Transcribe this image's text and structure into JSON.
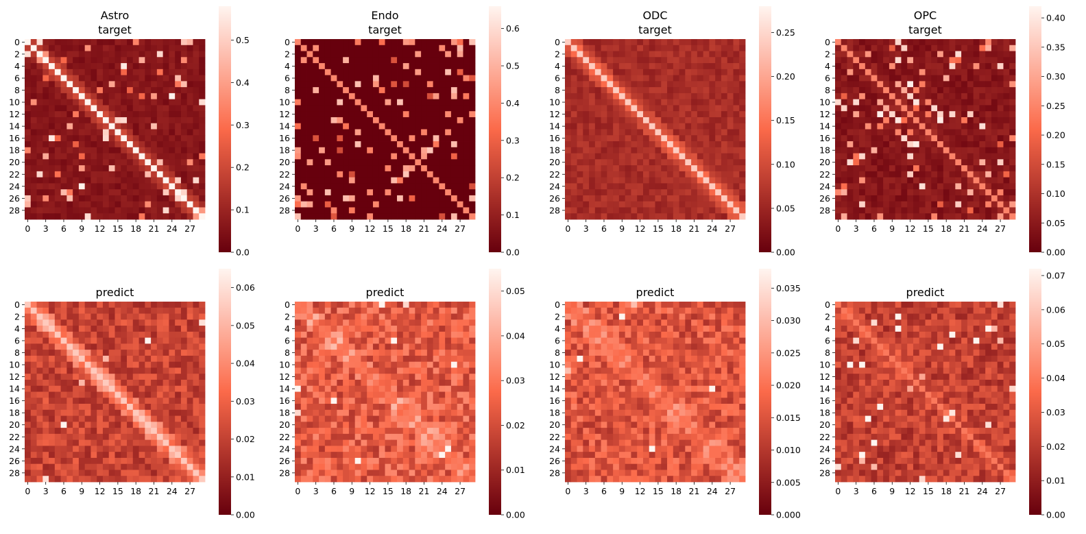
{
  "colormap": {
    "name": "Reds_r",
    "low": "#67000d",
    "mid": "#fb6a4a",
    "high": "#fff5f0"
  },
  "chart_data": [
    {
      "type": "heatmap",
      "title": "Astro\ntarget",
      "rows": 30,
      "cols": 30,
      "ytick_labels": [
        "0",
        "2",
        "4",
        "6",
        "8",
        "10",
        "12",
        "14",
        "16",
        "18",
        "20",
        "22",
        "24",
        "26",
        "28"
      ],
      "xtick_labels": [
        "0",
        "3",
        "6",
        "9",
        "12",
        "15",
        "18",
        "21",
        "24",
        "27"
      ],
      "colorbar": {
        "min": 0.0,
        "max": 0.58,
        "ticks": [
          "0.0",
          "0.1",
          "0.2",
          "0.3",
          "0.4",
          "0.5"
        ]
      },
      "pattern": {
        "diagonal": 0.58,
        "band": 0.12,
        "background": 0.03,
        "noise": 0.06,
        "speckle": 0.08,
        "seed": 11
      }
    },
    {
      "type": "heatmap",
      "title": "Endo\ntarget",
      "rows": 30,
      "cols": 30,
      "ytick_labels": [
        "0",
        "2",
        "4",
        "6",
        "8",
        "10",
        "12",
        "14",
        "16",
        "18",
        "20",
        "22",
        "24",
        "26",
        "28"
      ],
      "xtick_labels": [
        "0",
        "3",
        "6",
        "9",
        "12",
        "15",
        "18",
        "21",
        "24",
        "27"
      ],
      "colorbar": {
        "min": 0.0,
        "max": 0.66,
        "ticks": [
          "0.0",
          "0.1",
          "0.2",
          "0.3",
          "0.4",
          "0.5",
          "0.6"
        ]
      },
      "pattern": {
        "diagonal": 0.4,
        "band": 0.0,
        "background": 0.0,
        "noise": 0.0,
        "speckle": 0.1,
        "seed": 23
      }
    },
    {
      "type": "heatmap",
      "title": "ODC\ntarget",
      "rows": 30,
      "cols": 30,
      "ytick_labels": [
        "0",
        "2",
        "4",
        "6",
        "8",
        "10",
        "12",
        "14",
        "16",
        "18",
        "20",
        "22",
        "24",
        "26",
        "28"
      ],
      "xtick_labels": [
        "0",
        "3",
        "6",
        "9",
        "12",
        "15",
        "18",
        "21",
        "24",
        "27"
      ],
      "colorbar": {
        "min": 0.0,
        "max": 0.28,
        "ticks": [
          "0.00",
          "0.05",
          "0.10",
          "0.15",
          "0.20",
          "0.25"
        ]
      },
      "pattern": {
        "diagonal": 0.24,
        "band": 0.06,
        "background": 0.04,
        "noise": 0.04,
        "speckle": 0.0,
        "seed": 37
      }
    },
    {
      "type": "heatmap",
      "title": "OPC\ntarget",
      "rows": 30,
      "cols": 30,
      "ytick_labels": [
        "0",
        "2",
        "4",
        "6",
        "8",
        "10",
        "12",
        "14",
        "16",
        "18",
        "20",
        "22",
        "24",
        "26",
        "28"
      ],
      "xtick_labels": [
        "0",
        "3",
        "6",
        "9",
        "12",
        "15",
        "18",
        "21",
        "24",
        "27"
      ],
      "colorbar": {
        "min": 0.0,
        "max": 0.42,
        "ticks": [
          "0.00",
          "0.05",
          "0.10",
          "0.15",
          "0.20",
          "0.25",
          "0.30",
          "0.35",
          "0.40"
        ]
      },
      "pattern": {
        "diagonal": 0.25,
        "band": 0.02,
        "background": 0.02,
        "noise": 0.05,
        "speckle": 0.14,
        "seed": 41
      }
    },
    {
      "type": "heatmap",
      "title": "predict",
      "rows": 30,
      "cols": 30,
      "ytick_labels": [
        "0",
        "2",
        "4",
        "6",
        "8",
        "10",
        "12",
        "14",
        "16",
        "18",
        "20",
        "22",
        "24",
        "26",
        "28"
      ],
      "xtick_labels": [
        "0",
        "3",
        "6",
        "9",
        "12",
        "15",
        "18",
        "21",
        "24",
        "27"
      ],
      "colorbar": {
        "min": 0.0,
        "max": 0.065,
        "ticks": [
          "0.00",
          "0.01",
          "0.02",
          "0.03",
          "0.04",
          "0.05",
          "0.06"
        ]
      },
      "pattern": {
        "diagonal": 0.055,
        "band": 0.02,
        "background": 0.012,
        "noise": 0.018,
        "speckle": 0.015,
        "seed": 53
      }
    },
    {
      "type": "heatmap",
      "title": "predict",
      "rows": 30,
      "cols": 30,
      "ytick_labels": [
        "0",
        "2",
        "4",
        "6",
        "8",
        "10",
        "12",
        "14",
        "16",
        "18",
        "20",
        "22",
        "24",
        "26",
        "28"
      ],
      "xtick_labels": [
        "0",
        "3",
        "6",
        "9",
        "12",
        "15",
        "18",
        "21",
        "24",
        "27"
      ],
      "colorbar": {
        "min": 0.0,
        "max": 0.055,
        "ticks": [
          "0.00",
          "0.01",
          "0.02",
          "0.03",
          "0.04",
          "0.05"
        ]
      },
      "pattern": {
        "diagonal": 0.03,
        "band": 0.01,
        "background": 0.014,
        "noise": 0.02,
        "speckle": 0.012,
        "seed": 67
      }
    },
    {
      "type": "heatmap",
      "title": "predict",
      "rows": 30,
      "cols": 30,
      "ytick_labels": [
        "0",
        "2",
        "4",
        "6",
        "8",
        "10",
        "12",
        "14",
        "16",
        "18",
        "20",
        "22",
        "24",
        "26",
        "28"
      ],
      "xtick_labels": [
        "0",
        "3",
        "6",
        "9",
        "12",
        "15",
        "18",
        "21",
        "24",
        "27"
      ],
      "colorbar": {
        "min": 0.0,
        "max": 0.038,
        "ticks": [
          "0.000",
          "0.005",
          "0.010",
          "0.015",
          "0.020",
          "0.025",
          "0.030",
          "0.035"
        ]
      },
      "pattern": {
        "diagonal": 0.02,
        "band": 0.006,
        "background": 0.009,
        "noise": 0.013,
        "speckle": 0.006,
        "seed": 79
      }
    },
    {
      "type": "heatmap",
      "title": "predict",
      "rows": 30,
      "cols": 30,
      "ytick_labels": [
        "0",
        "2",
        "4",
        "6",
        "8",
        "10",
        "12",
        "14",
        "16",
        "18",
        "20",
        "22",
        "24",
        "26",
        "28"
      ],
      "xtick_labels": [
        "0",
        "3",
        "6",
        "9",
        "12",
        "15",
        "18",
        "21",
        "24",
        "27"
      ],
      "colorbar": {
        "min": 0.0,
        "max": 0.072,
        "ticks": [
          "0.00",
          "0.01",
          "0.02",
          "0.03",
          "0.04",
          "0.05",
          "0.06",
          "0.07"
        ]
      },
      "pattern": {
        "diagonal": 0.04,
        "band": 0.005,
        "background": 0.012,
        "noise": 0.02,
        "speckle": 0.03,
        "seed": 89
      }
    }
  ]
}
